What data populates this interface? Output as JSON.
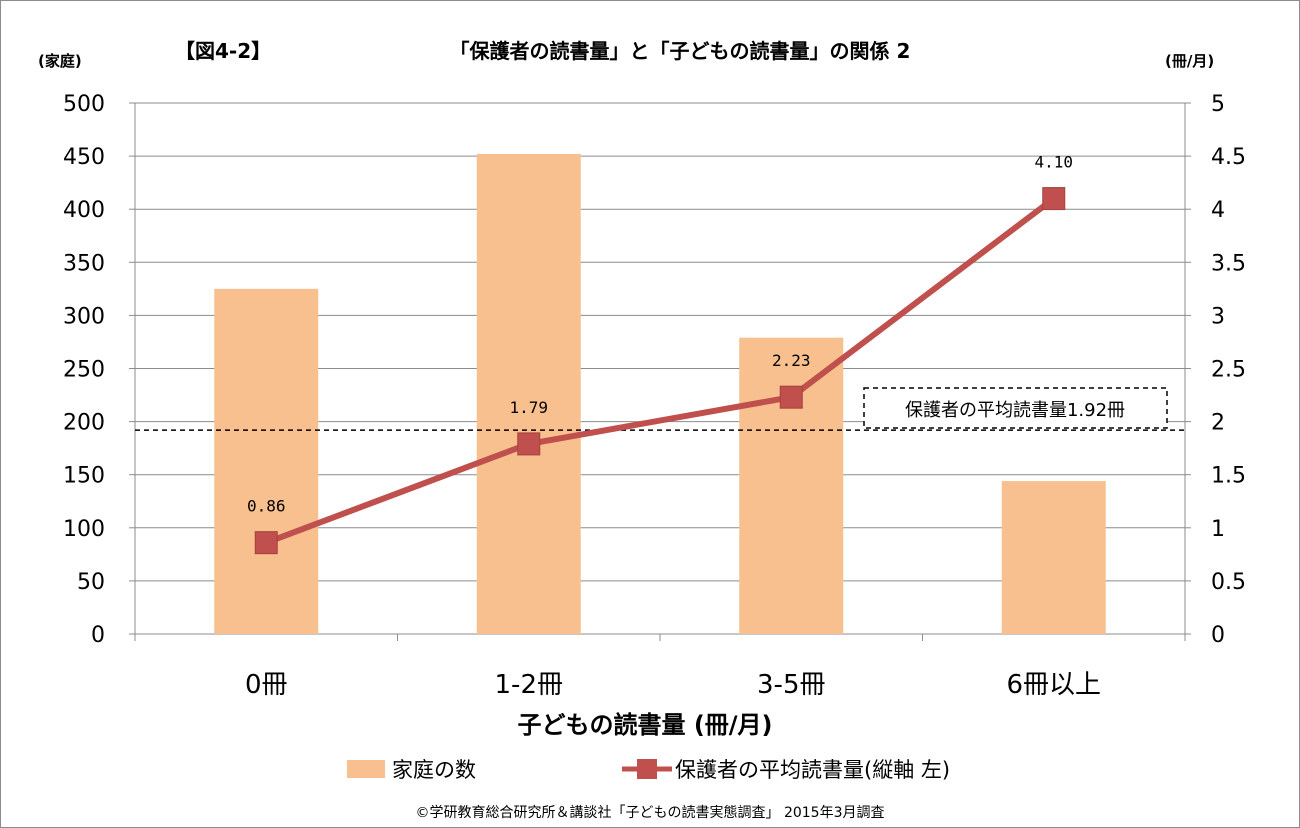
{
  "header": {
    "figure_label": "【図4-2】",
    "title": "「保護者の読書量」と「子どもの読書量」の関係 2",
    "left_unit": "(家庭)",
    "right_unit": "(冊/月)"
  },
  "footer": {
    "source": "©学研教育総合研究所＆講談社「子どもの読書実態調査」 2015年3月調査"
  },
  "chart_data": {
    "type": "bar+line",
    "categories": [
      "0冊",
      "1-2冊",
      "3-5冊",
      "6冊以上"
    ],
    "xlabel": "子どもの読書量 (冊/月)",
    "y_left": {
      "range": [
        0,
        500
      ],
      "ticks": [
        "0",
        "50",
        "100",
        "150",
        "200",
        "250",
        "300",
        "350",
        "400",
        "450",
        "500"
      ],
      "unit": "(家庭)"
    },
    "y_right": {
      "range": [
        0,
        5
      ],
      "ticks": [
        "0",
        "0.5",
        "1",
        "1.5",
        "2",
        "2.5",
        "3",
        "3.5",
        "4",
        "4.5",
        "5"
      ],
      "unit": "(冊/月)"
    },
    "series": [
      {
        "name": "家庭の数",
        "kind": "bar",
        "axis": "left",
        "color": "#f9c08f",
        "values": [
          325,
          452,
          279,
          144
        ]
      },
      {
        "name": "保護者の平均読書量(縦軸 左)",
        "kind": "line",
        "axis": "right",
        "color": "#c0504d",
        "values": [
          0.86,
          1.79,
          2.23,
          4.1
        ],
        "labels": [
          "0.86",
          "1.79",
          "2.23",
          "4.10"
        ]
      }
    ],
    "reference_line": {
      "value": 1.92,
      "axis": "right",
      "label": "保護者の平均読書量1.92冊",
      "style": "dashed"
    },
    "grid": true,
    "legend_position": "bottom"
  }
}
